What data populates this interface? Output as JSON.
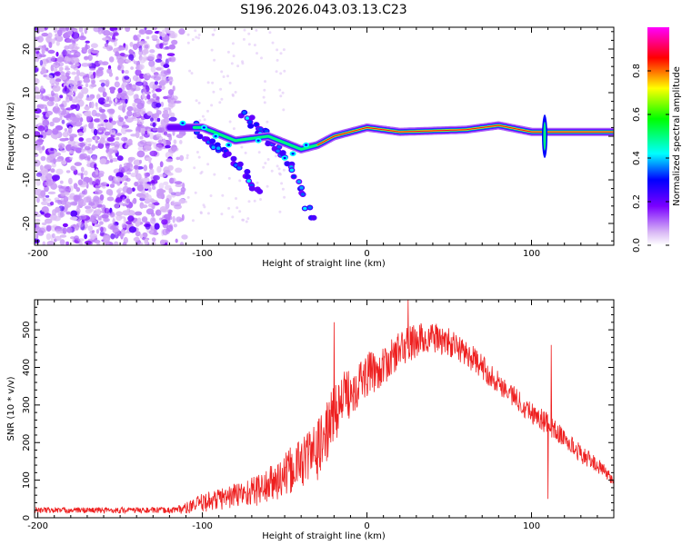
{
  "title": "S196.2026.043.03.13.C23",
  "chart_data": [
    {
      "type": "heatmap",
      "name": "spectrogram",
      "title": "S196.2026.043.03.13.C23",
      "xlabel": "Height of straight line (km)",
      "ylabel": "Frequency (Hz)",
      "xlim": [
        -202,
        150
      ],
      "ylim": [
        -25,
        25
      ],
      "xticks": [
        -200,
        -100,
        0,
        100
      ],
      "yticks": [
        -20,
        -10,
        0,
        10,
        20
      ],
      "colorbar": {
        "label": "Normalized spectral amplitude",
        "range": [
          0,
          1
        ],
        "ticks": [
          0.0,
          0.2,
          0.4,
          0.6,
          0.8
        ],
        "tick_labels": [
          "0.0",
          "0.2",
          "0.4",
          "0.6",
          "0.8"
        ],
        "colors": [
          "#ffffff",
          "#d9b8f5",
          "#7a00ff",
          "#0000ff",
          "#00ffff",
          "#00ff00",
          "#ffff00",
          "#ff0000",
          "#ff00ff"
        ]
      },
      "features": [
        {
          "name": "noise scatter",
          "x_range": [
            -202,
            -110
          ],
          "y_range": [
            -25,
            25
          ],
          "amplitude": 0.12
        },
        {
          "name": "main line",
          "points": [
            [
              -120,
              2
            ],
            [
              -100,
              2
            ],
            [
              -80,
              -1
            ],
            [
              -60,
              0
            ],
            [
              -40,
              -3
            ],
            [
              -30,
              -2
            ],
            [
              -20,
              0
            ],
            [
              -10,
              1
            ],
            [
              0,
              2
            ],
            [
              20,
              1
            ],
            [
              60,
              1.5
            ],
            [
              80,
              2.5
            ],
            [
              100,
              1
            ],
            [
              150,
              1
            ]
          ],
          "amplitude": 0.9
        },
        {
          "name": "dispersive branch 1",
          "points": [
            [
              -105,
              3
            ],
            [
              -90,
              -3
            ],
            [
              -75,
              -8
            ],
            [
              -65,
              -13
            ]
          ],
          "amplitude": 0.5
        },
        {
          "name": "dispersive branch 2",
          "points": [
            [
              -75,
              5
            ],
            [
              -60,
              0
            ],
            [
              -50,
              -5
            ],
            [
              -40,
              -12
            ],
            [
              -33,
              -19
            ]
          ],
          "amplitude": 0.45
        },
        {
          "name": "spike",
          "x": 108,
          "y_range": [
            -5,
            5
          ],
          "amplitude": 0.4
        }
      ]
    },
    {
      "type": "line",
      "name": "snr",
      "xlabel": "Height of straight line (km)",
      "ylabel": "SNR (10 * v/v)",
      "xlim": [
        -202,
        150
      ],
      "ylim": [
        0,
        580
      ],
      "xticks": [
        -200,
        -100,
        0,
        100
      ],
      "yticks": [
        0,
        100,
        200,
        300,
        400,
        500
      ],
      "color": "#ee2020",
      "envelope": {
        "x": [
          -202,
          -180,
          -160,
          -140,
          -120,
          -110,
          -100,
          -90,
          -80,
          -70,
          -60,
          -50,
          -40,
          -30,
          -25,
          -20,
          -10,
          0,
          10,
          20,
          30,
          40,
          50,
          60,
          70,
          80,
          90,
          100,
          110,
          120,
          130,
          140,
          150
        ],
        "mean": [
          20,
          20,
          20,
          20,
          20,
          25,
          40,
          50,
          60,
          70,
          85,
          110,
          150,
          180,
          220,
          280,
          340,
          380,
          400,
          450,
          470,
          480,
          465,
          440,
          400,
          360,
          320,
          280,
          250,
          210,
          170,
          140,
          100
        ],
        "amplitude": [
          8,
          8,
          8,
          8,
          8,
          15,
          25,
          30,
          35,
          40,
          50,
          60,
          70,
          80,
          80,
          80,
          70,
          60,
          50,
          50,
          50,
          40,
          40,
          35,
          35,
          30,
          30,
          30,
          30,
          25,
          25,
          20,
          15
        ]
      },
      "spikes": [
        {
          "x": -20,
          "y": 520
        },
        {
          "x": 25,
          "y": 580
        },
        {
          "x": 112,
          "y": 460
        },
        {
          "x": 110,
          "y": 50
        }
      ]
    }
  ]
}
